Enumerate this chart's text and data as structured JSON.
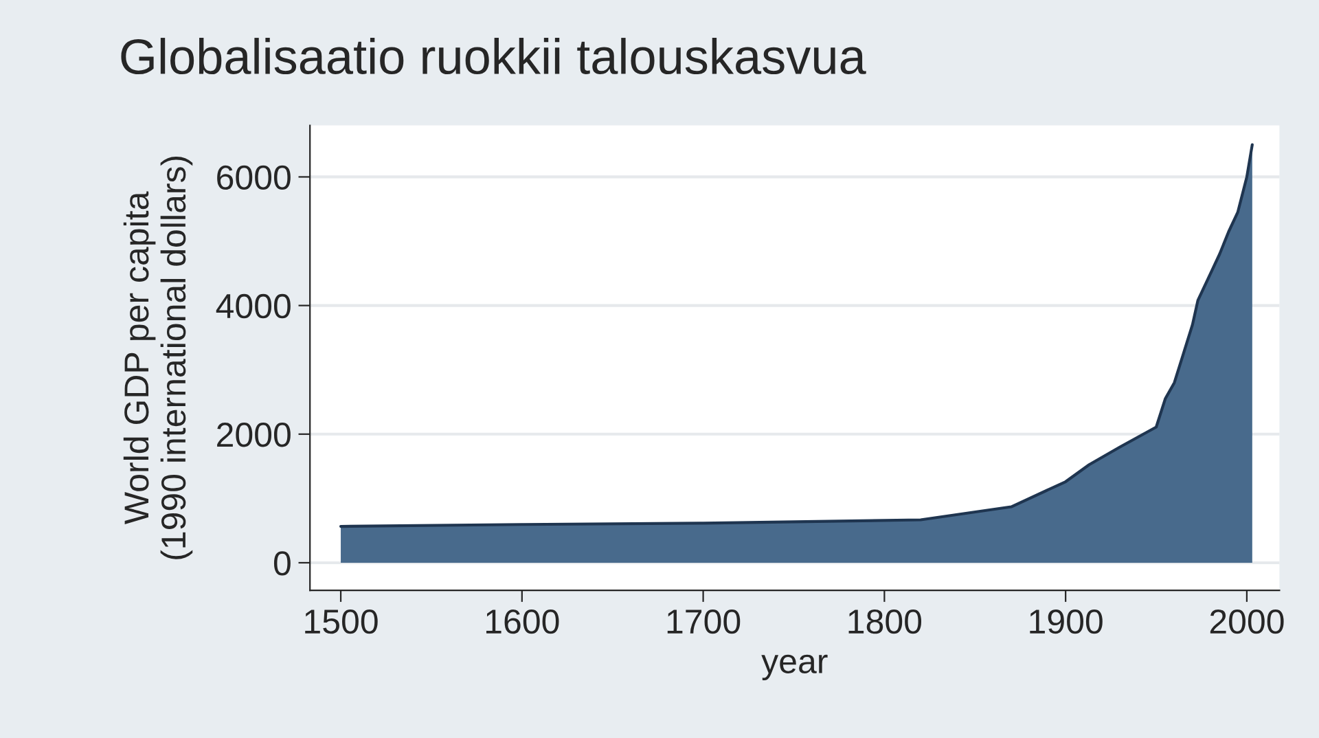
{
  "chart_data": {
    "type": "area",
    "title": "Globalisaatio ruokkii talouskasvua",
    "xlabel": "year",
    "ylabel": "World GDP per capita\n(1990 international dollars)",
    "x": [
      1500,
      1600,
      1700,
      1820,
      1870,
      1900,
      1913,
      1930,
      1950,
      1955,
      1960,
      1965,
      1970,
      1973,
      1980,
      1985,
      1990,
      1995,
      2000,
      2003
    ],
    "series": [
      {
        "color": "#486a8c",
        "values": [
          565,
          595,
          615,
          667,
          870,
          1260,
          1525,
          1800,
          2110,
          2550,
          2800,
          3250,
          3700,
          4080,
          4500,
          4800,
          5150,
          5450,
          6000,
          6500
        ]
      }
    ],
    "xlim": [
      1483,
      2018
    ],
    "ylim": [
      -430,
      6800
    ],
    "xticks": [
      1500,
      1600,
      1700,
      1800,
      1900,
      2000
    ],
    "yticks": [
      0,
      2000,
      4000,
      6000
    ],
    "grid": "y"
  }
}
